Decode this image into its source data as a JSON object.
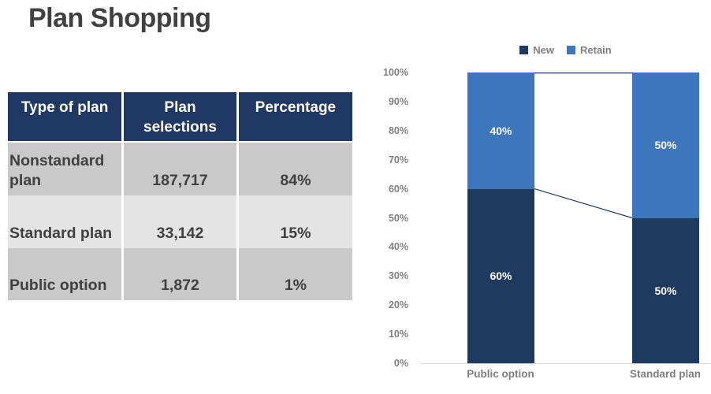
{
  "title": "Plan Shopping",
  "colors": {
    "header_bg": "#1F3864",
    "navy": "#1F3A5F",
    "blue": "#3D76BC",
    "row_dark": "#C9C9C9",
    "row_light": "#E4E4E4",
    "text_dark": "#404040",
    "axis_gray": "#7F7F7F",
    "axis_line": "#D9D9D9"
  },
  "table": {
    "headers": [
      "Type of plan",
      "Plan selections",
      "Percentage"
    ],
    "rows": [
      {
        "type": "Nonstandard plan",
        "selections": "187,717",
        "percentage": "84%"
      },
      {
        "type": "Standard plan",
        "selections": "33,142",
        "percentage": "15%"
      },
      {
        "type": "Public option",
        "selections": "1,872",
        "percentage": "1%"
      }
    ]
  },
  "chart_data": {
    "type": "bar",
    "subtype": "stacked-100-percent",
    "categories": [
      "Public option",
      "Standard plan"
    ],
    "series": [
      {
        "name": "New",
        "color": "#1F3A5F",
        "values": [
          60,
          50
        ]
      },
      {
        "name": "Retain",
        "color": "#3D76BC",
        "values": [
          40,
          50
        ]
      }
    ],
    "data_labels": [
      [
        "60%",
        "50%"
      ],
      [
        "40%",
        "50%"
      ]
    ],
    "y_ticks": [
      "0%",
      "10%",
      "20%",
      "30%",
      "40%",
      "50%",
      "60%",
      "70%",
      "80%",
      "90%",
      "100%"
    ],
    "ylim": [
      0,
      100
    ],
    "grid": false,
    "legend_position": "top-center",
    "connector_lines": true
  }
}
